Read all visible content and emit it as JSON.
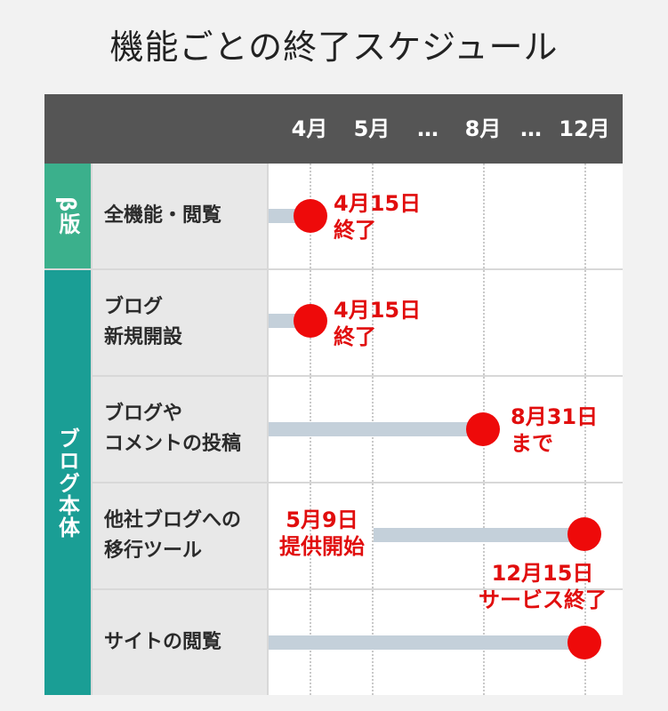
{
  "title": "機能ごとの終了スケジュール",
  "months": [
    "4月",
    "5月",
    "…",
    "8月",
    "…",
    "12月"
  ],
  "groups": {
    "beta": "β版",
    "blog": "ブログ本体"
  },
  "rows": [
    {
      "label_lines": [
        "全機能・閲覧"
      ],
      "note_lines": [
        "4月15日",
        "終了"
      ]
    },
    {
      "label_lines": [
        "ブログ",
        "新規開設"
      ],
      "note_lines": [
        "4月15日",
        "終了"
      ]
    },
    {
      "label_lines": [
        "ブログや",
        "コメントの投稿"
      ],
      "note_lines": [
        "8月31日",
        "まで"
      ]
    },
    {
      "label_lines": [
        "他社ブログへの",
        "移行ツール"
      ],
      "note_lines": [
        "5月9日",
        "提供開始"
      ],
      "note2_lines": [
        "12月15日",
        "サービス終了"
      ]
    },
    {
      "label_lines": [
        "サイトの閲覧"
      ]
    }
  ],
  "colors": {
    "header": "#555555",
    "beta": "#3bb08c",
    "blog": "#1a9e95",
    "bar": "#c4d0da",
    "dot": "#ee0a0a",
    "note": "#e10d0d"
  }
}
